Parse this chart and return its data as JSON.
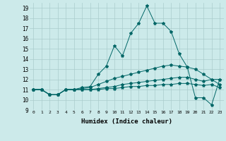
{
  "xlabel": "Humidex (Indice chaleur)",
  "bg_color": "#cceaea",
  "grid_color": "#aacccc",
  "line_color": "#006666",
  "xlim": [
    -0.5,
    23.5
  ],
  "ylim": [
    9,
    19.5
  ],
  "yticks": [
    9,
    10,
    11,
    12,
    13,
    14,
    15,
    16,
    17,
    18,
    19
  ],
  "xticks": [
    0,
    1,
    2,
    3,
    4,
    5,
    6,
    7,
    8,
    9,
    10,
    11,
    12,
    13,
    14,
    15,
    16,
    17,
    18,
    19,
    20,
    21,
    22,
    23
  ],
  "line1_x": [
    0,
    1,
    2,
    3,
    4,
    5,
    6,
    7,
    8,
    9,
    10,
    11,
    12,
    13,
    14,
    15,
    16,
    17,
    18,
    19,
    20,
    21,
    22,
    23
  ],
  "line1_y": [
    11,
    11,
    10.5,
    10.5,
    11,
    11,
    11.2,
    11.3,
    12.5,
    13.3,
    15.3,
    14.3,
    16.5,
    17.5,
    19.2,
    17.5,
    17.5,
    16.7,
    14.5,
    13.2,
    10.2,
    10.2,
    9.5,
    12.0
  ],
  "line2_x": [
    0,
    1,
    2,
    3,
    4,
    5,
    6,
    7,
    8,
    9,
    10,
    11,
    12,
    13,
    14,
    15,
    16,
    17,
    18,
    19,
    20,
    21,
    22,
    23
  ],
  "line2_y": [
    11,
    11,
    10.5,
    10.5,
    11,
    11,
    11.1,
    11.2,
    11.5,
    11.8,
    12.1,
    12.3,
    12.5,
    12.7,
    12.9,
    13.1,
    13.3,
    13.4,
    13.3,
    13.2,
    13.0,
    12.5,
    12.0,
    12.0
  ],
  "line3_x": [
    0,
    1,
    2,
    3,
    4,
    5,
    6,
    7,
    8,
    9,
    10,
    11,
    12,
    13,
    14,
    15,
    16,
    17,
    18,
    19,
    20,
    21,
    22,
    23
  ],
  "line3_y": [
    11,
    11,
    10.5,
    10.5,
    11,
    11,
    11.0,
    11.0,
    11.1,
    11.2,
    11.3,
    11.5,
    11.6,
    11.7,
    11.8,
    11.9,
    12.0,
    12.1,
    12.2,
    12.2,
    12.0,
    11.8,
    12.0,
    11.5
  ],
  "line4_x": [
    0,
    1,
    2,
    3,
    4,
    5,
    6,
    7,
    8,
    9,
    10,
    11,
    12,
    13,
    14,
    15,
    16,
    17,
    18,
    19,
    20,
    21,
    22,
    23
  ],
  "line4_y": [
    11,
    11,
    10.5,
    10.5,
    11,
    11,
    11.0,
    11.0,
    11.0,
    11.1,
    11.1,
    11.2,
    11.3,
    11.3,
    11.4,
    11.4,
    11.5,
    11.5,
    11.6,
    11.6,
    11.5,
    11.4,
    11.5,
    11.2
  ]
}
